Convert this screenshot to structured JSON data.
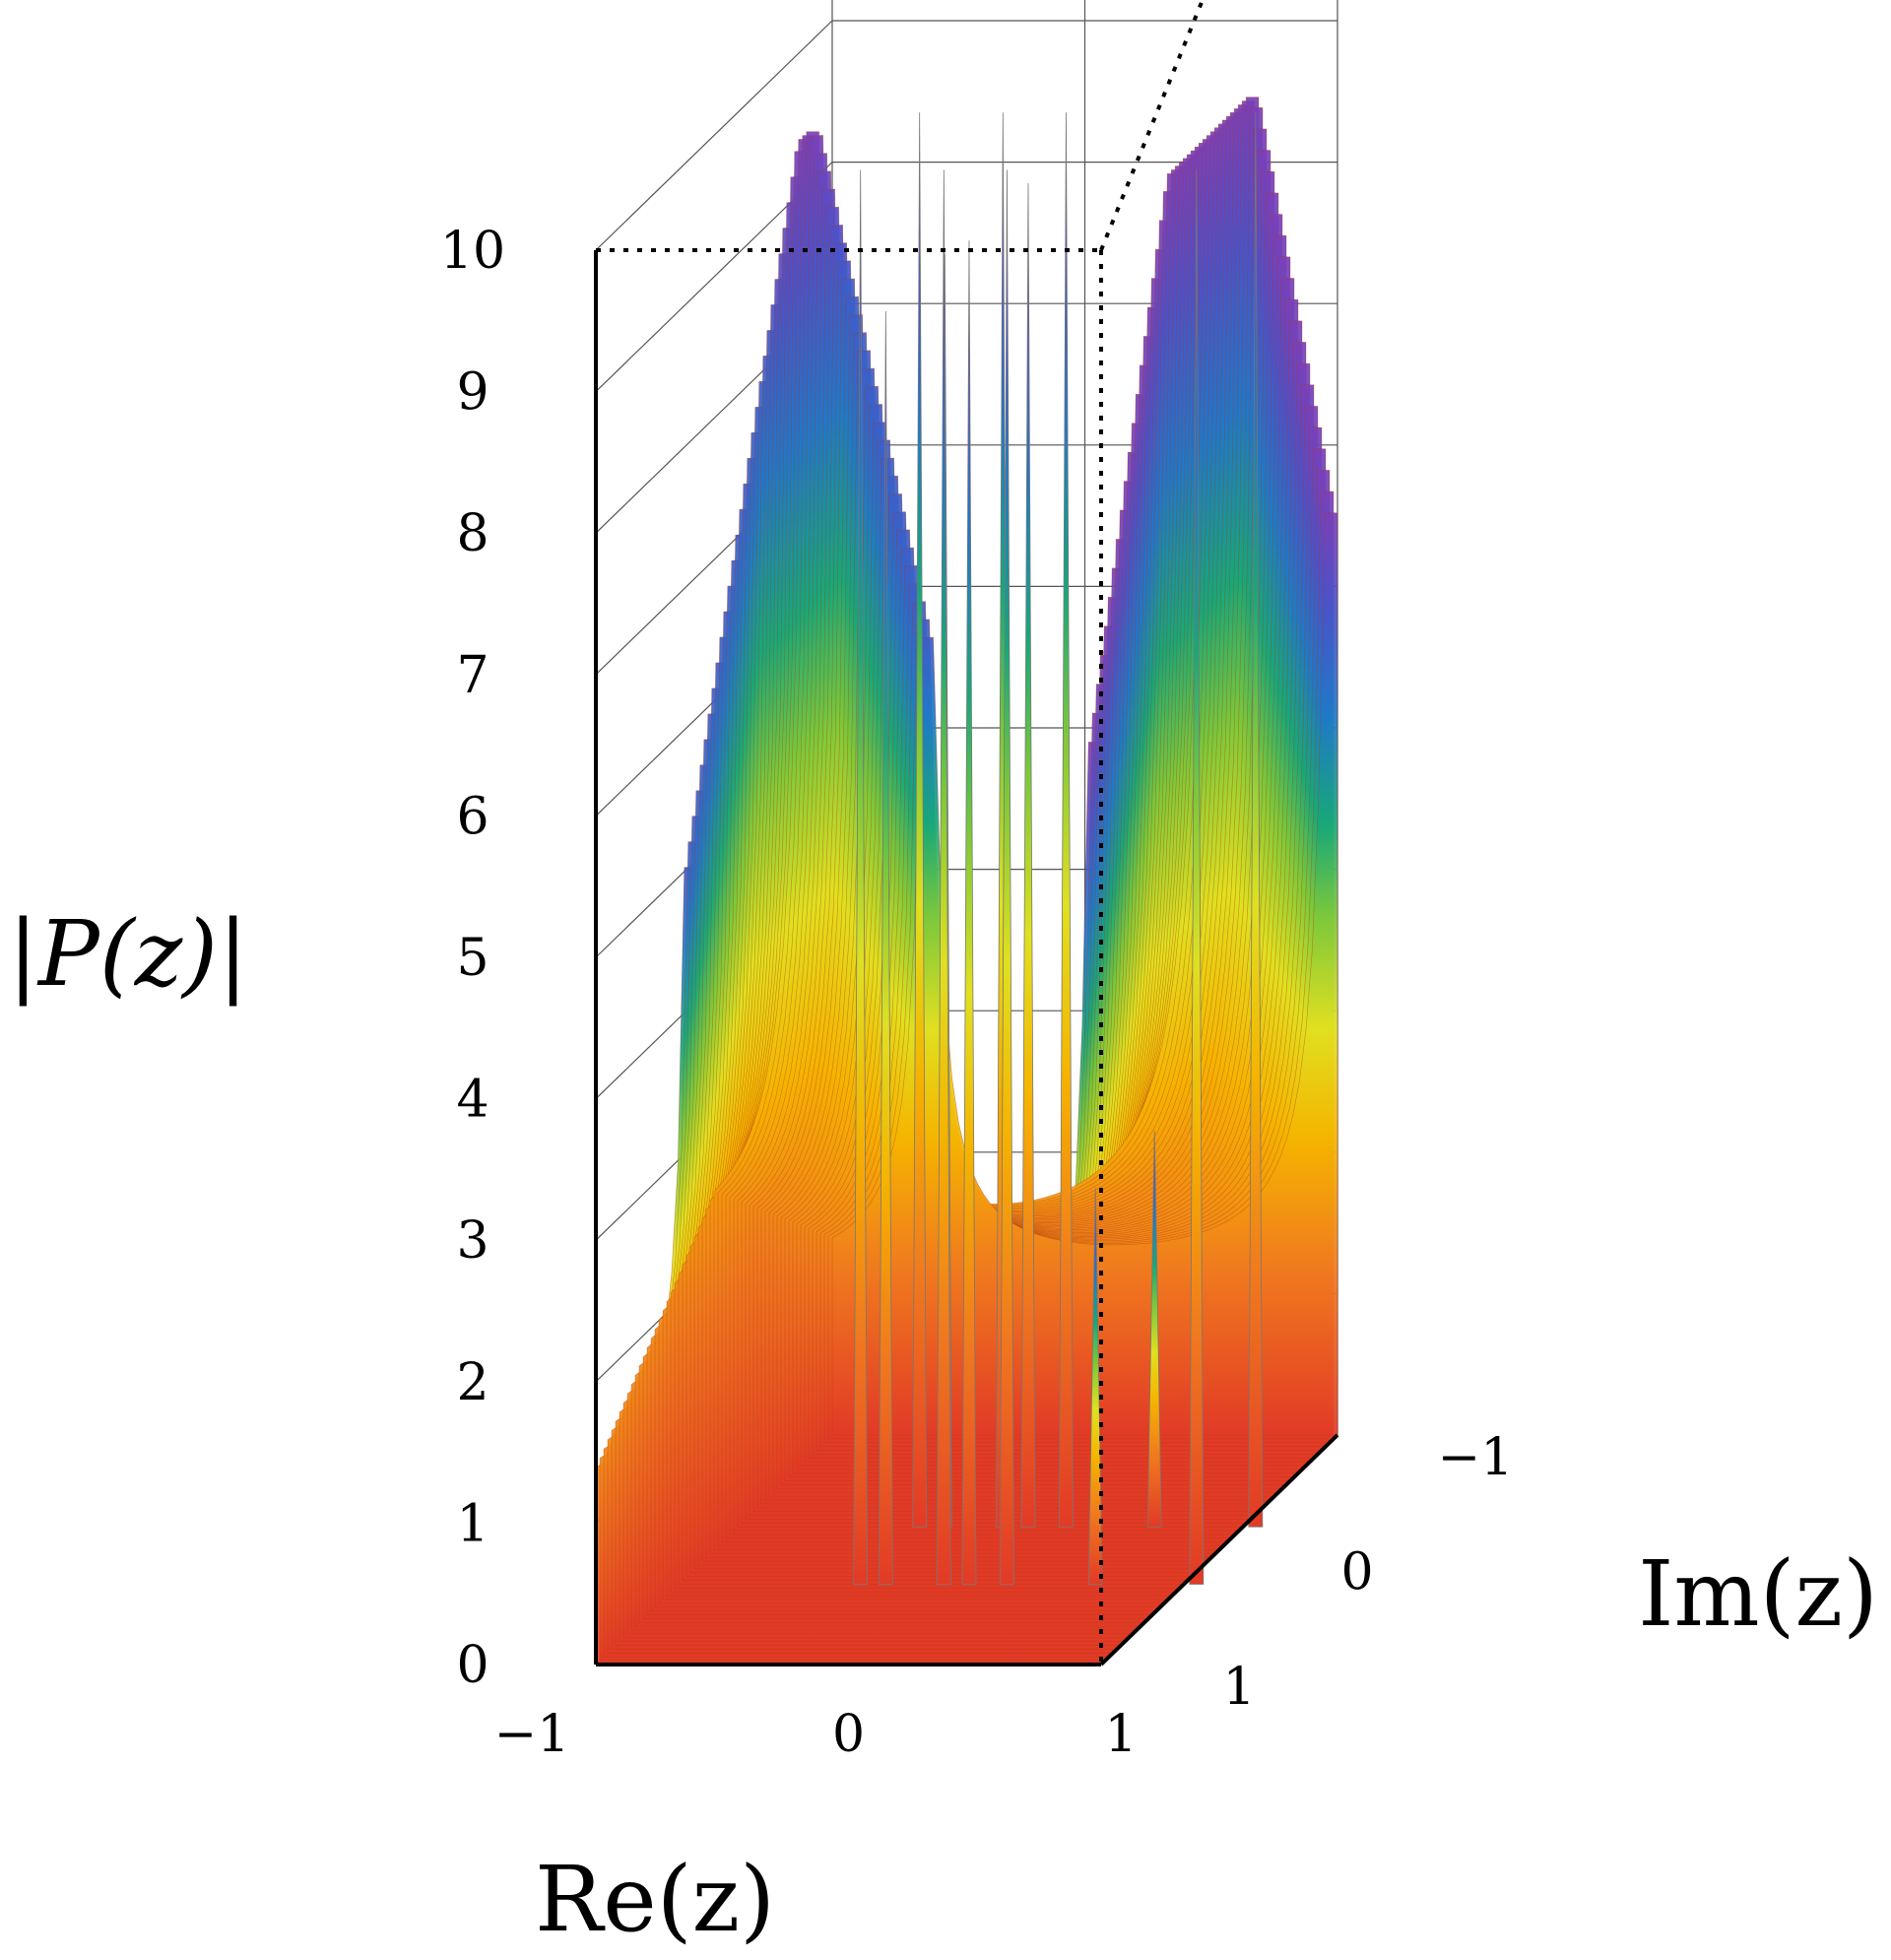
{
  "chart_data": {
    "type": "surface3d",
    "function": "|P(z)|",
    "xlabel": "Re(z)",
    "ylabel": "Im(z)",
    "zlabel": "|P(z)|",
    "x_ticks": [
      "−1",
      "0",
      "1"
    ],
    "y_ticks": [
      "−1",
      "0",
      "1"
    ],
    "z_ticks": [
      "0",
      "1",
      "2",
      "3",
      "4",
      "5",
      "6",
      "7",
      "8",
      "9",
      "10"
    ],
    "xlim": [
      -1,
      1
    ],
    "ylim": [
      -1,
      1
    ],
    "zlim": [
      0,
      10
    ],
    "grid": true,
    "colormap": [
      "#e8402a",
      "#f07a1e",
      "#f5b400",
      "#e8e020",
      "#7cc83a",
      "#18a878",
      "#1f78c8",
      "#4b52c8",
      "#7a3fb8"
    ],
    "surface_min_valley": 1.7,
    "spikes": [
      {
        "re": -0.28,
        "peak": 10
      },
      {
        "re": -0.18,
        "peak": 9
      },
      {
        "re": 0.05,
        "peak": 10
      },
      {
        "re": 0.15,
        "peak": 9.5
      },
      {
        "re": 0.3,
        "peak": 10
      },
      {
        "re": 0.65,
        "peak": 2.8
      },
      {
        "re": 1.05,
        "peak": 10
      }
    ]
  }
}
